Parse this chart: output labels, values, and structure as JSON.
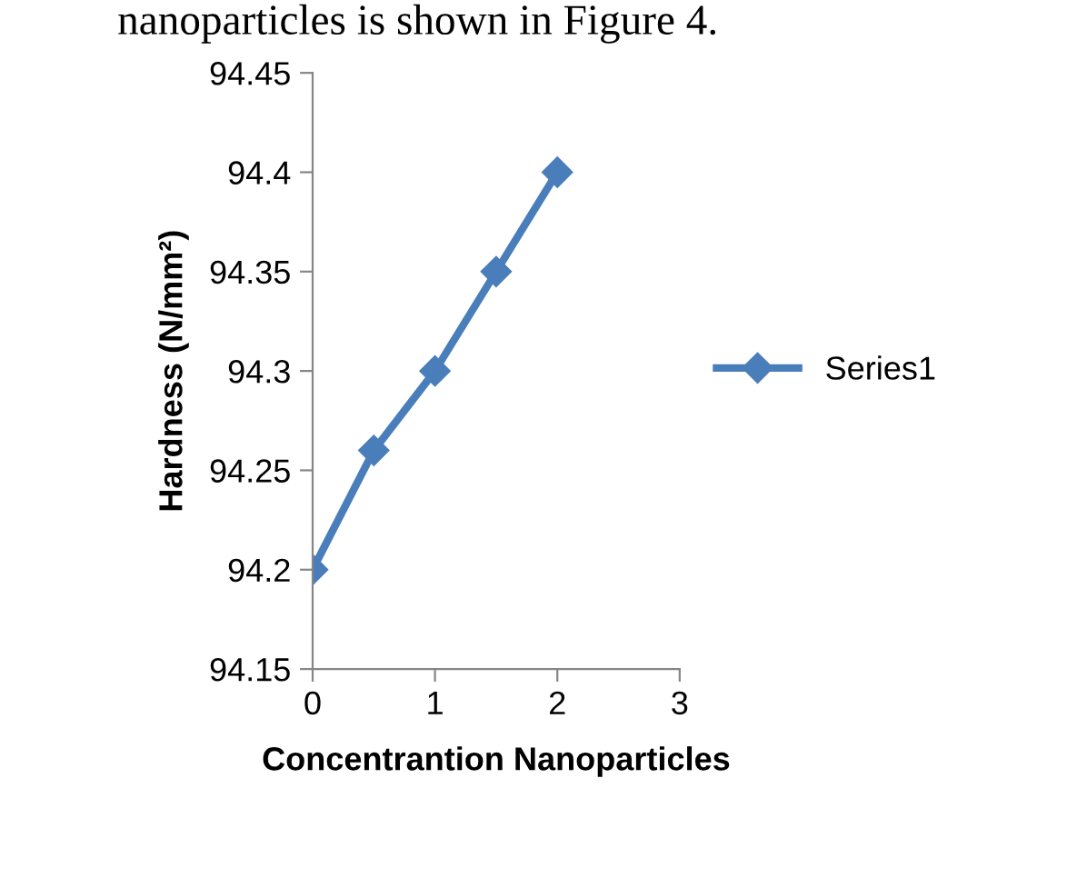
{
  "chart_data": {
    "type": "line",
    "xlabel": "Concentrantion Nanoparticles",
    "ylabel": "Hardness (N/mm²)",
    "annotations": [
      "nanoparticles is shown in Figure 4."
    ],
    "x": [
      0,
      0.5,
      1,
      1.5,
      2
    ],
    "series": [
      {
        "name": "Series1",
        "color": "#4a7ebb",
        "values": [
          94.2,
          94.26,
          94.3,
          94.35,
          94.4
        ]
      }
    ],
    "xlim": [
      0,
      3
    ],
    "xticks": [
      0,
      1,
      2,
      3
    ],
    "ylim": [
      94.15,
      94.45
    ],
    "yticks": [
      94.15,
      94.2,
      94.25,
      94.3,
      94.35,
      94.4,
      94.45
    ],
    "grid": false,
    "legend": "right",
    "marker": "diamond",
    "line_style": "solid"
  }
}
